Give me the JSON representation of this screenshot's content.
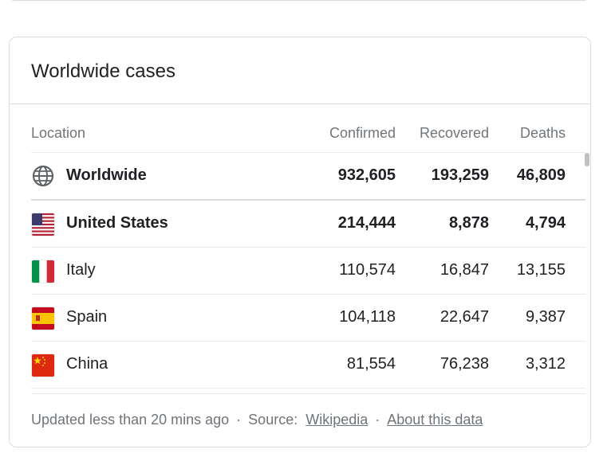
{
  "card": {
    "title": "Worldwide cases"
  },
  "table": {
    "headers": {
      "location": "Location",
      "confirmed": "Confirmed",
      "recovered": "Recovered",
      "deaths": "Deaths"
    },
    "rows": [
      {
        "icon": "globe-icon",
        "location": "Worldwide",
        "confirmed": "932,605",
        "recovered": "193,259",
        "deaths": "46,809",
        "bold": true
      },
      {
        "icon": "us-flag-icon",
        "location": "United States",
        "confirmed": "214,444",
        "recovered": "8,878",
        "deaths": "4,794",
        "bold": true
      },
      {
        "icon": "italy-flag-icon",
        "location": "Italy",
        "confirmed": "110,574",
        "recovered": "16,847",
        "deaths": "13,155",
        "bold": false
      },
      {
        "icon": "spain-flag-icon",
        "location": "Spain",
        "confirmed": "104,118",
        "recovered": "22,647",
        "deaths": "9,387",
        "bold": false
      },
      {
        "icon": "china-flag-icon",
        "location": "China",
        "confirmed": "81,554",
        "recovered": "76,238",
        "deaths": "3,312",
        "bold": false
      }
    ]
  },
  "footer": {
    "updated": "Updated less than 20 mins ago",
    "separator": "·",
    "source_label": "Source:",
    "source_link": "Wikipedia",
    "about_link": "About this data"
  },
  "colors": {
    "border": "#dadce0",
    "text_primary": "#202124",
    "text_secondary": "#70757a"
  }
}
